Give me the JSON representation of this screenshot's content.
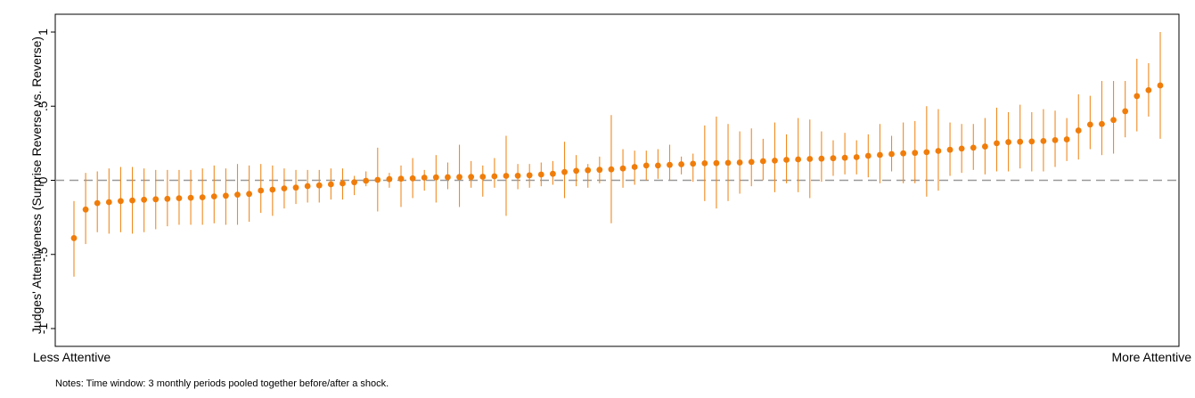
{
  "chart_data": {
    "type": "scatter",
    "ylabel": "Judges' Attentiveness (Surprise Reverse vs. Reverse)",
    "x_left_label": "Less Attentive",
    "x_right_label": "More Attentive",
    "ylim": [
      -1.1,
      1.12
    ],
    "yticks": [
      {
        "value": 1,
        "label": "1"
      },
      {
        "value": 0.5,
        "label": ".5"
      },
      {
        "value": 0,
        "label": "0"
      },
      {
        "value": -0.5,
        "label": "-.5"
      },
      {
        "value": -1,
        "label": "-1"
      }
    ],
    "reference_line": 0,
    "grid": false,
    "colors": {
      "marker": "#f07d0a",
      "ci": "#f08a20",
      "refline": "#999999"
    },
    "estimates": [
      -0.39,
      -0.197,
      -0.154,
      -0.147,
      -0.14,
      -0.136,
      -0.131,
      -0.128,
      -0.125,
      -0.121,
      -0.118,
      -0.115,
      -0.109,
      -0.104,
      -0.097,
      -0.092,
      -0.069,
      -0.063,
      -0.055,
      -0.049,
      -0.039,
      -0.034,
      -0.027,
      -0.021,
      -0.013,
      -0.003,
      0.003,
      0.008,
      0.011,
      0.013,
      0.018,
      0.02,
      0.021,
      0.022,
      0.023,
      0.024,
      0.027,
      0.03,
      0.031,
      0.034,
      0.039,
      0.044,
      0.056,
      0.064,
      0.068,
      0.071,
      0.074,
      0.08,
      0.09,
      0.1,
      0.1,
      0.104,
      0.108,
      0.112,
      0.115,
      0.116,
      0.118,
      0.12,
      0.124,
      0.129,
      0.133,
      0.138,
      0.141,
      0.144,
      0.146,
      0.149,
      0.152,
      0.156,
      0.165,
      0.171,
      0.177,
      0.182,
      0.185,
      0.19,
      0.198,
      0.206,
      0.214,
      0.22,
      0.228,
      0.25,
      0.258,
      0.26,
      0.262,
      0.265,
      0.271,
      0.276,
      0.336,
      0.376,
      0.38,
      0.407,
      0.466,
      0.568,
      0.608,
      0.64
    ],
    "ci_lower": [
      -0.65,
      -0.43,
      -0.35,
      -0.36,
      -0.35,
      -0.36,
      -0.35,
      -0.33,
      -0.31,
      -0.3,
      -0.3,
      -0.3,
      -0.29,
      -0.3,
      -0.3,
      -0.28,
      -0.22,
      -0.24,
      -0.19,
      -0.16,
      -0.15,
      -0.15,
      -0.13,
      -0.13,
      -0.1,
      -0.04,
      -0.21,
      -0.05,
      -0.18,
      -0.12,
      -0.07,
      -0.15,
      -0.06,
      -0.18,
      -0.05,
      -0.11,
      -0.05,
      -0.24,
      -0.06,
      -0.05,
      -0.04,
      -0.03,
      -0.12,
      -0.04,
      -0.05,
      -0.02,
      -0.29,
      -0.05,
      -0.03,
      0.0,
      0.01,
      0.0,
      0.04,
      -0.01,
      -0.14,
      -0.19,
      -0.14,
      -0.09,
      -0.04,
      0.0,
      -0.08,
      -0.02,
      -0.08,
      -0.12,
      -0.01,
      0.03,
      0.04,
      0.04,
      0.02,
      -0.02,
      0.06,
      -0.02,
      -0.02,
      -0.11,
      -0.07,
      0.03,
      0.05,
      0.07,
      0.04,
      0.06,
      0.06,
      0.08,
      0.06,
      0.06,
      0.09,
      0.13,
      0.14,
      0.21,
      0.17,
      0.18,
      0.29,
      0.33,
      0.43,
      0.28
    ],
    "ci_upper": [
      -0.14,
      0.05,
      0.06,
      0.08,
      0.09,
      0.09,
      0.08,
      0.07,
      0.07,
      0.07,
      0.07,
      0.08,
      0.1,
      0.08,
      0.11,
      0.1,
      0.11,
      0.1,
      0.08,
      0.07,
      0.07,
      0.07,
      0.08,
      0.08,
      0.03,
      0.06,
      0.22,
      0.05,
      0.1,
      0.15,
      0.07,
      0.17,
      0.12,
      0.24,
      0.13,
      0.1,
      0.15,
      0.3,
      0.11,
      0.11,
      0.12,
      0.13,
      0.26,
      0.17,
      0.11,
      0.16,
      0.44,
      0.21,
      0.2,
      0.2,
      0.21,
      0.24,
      0.16,
      0.18,
      0.37,
      0.43,
      0.38,
      0.33,
      0.35,
      0.28,
      0.39,
      0.31,
      0.42,
      0.41,
      0.33,
      0.27,
      0.32,
      0.27,
      0.31,
      0.38,
      0.3,
      0.39,
      0.4,
      0.5,
      0.48,
      0.39,
      0.38,
      0.38,
      0.42,
      0.49,
      0.46,
      0.51,
      0.46,
      0.48,
      0.47,
      0.42,
      0.58,
      0.57,
      0.67,
      0.67,
      0.67,
      0.82,
      0.79,
      1.0
    ]
  },
  "notes": "Notes: Time window: 3 monthly periods pooled together before/after a shock."
}
